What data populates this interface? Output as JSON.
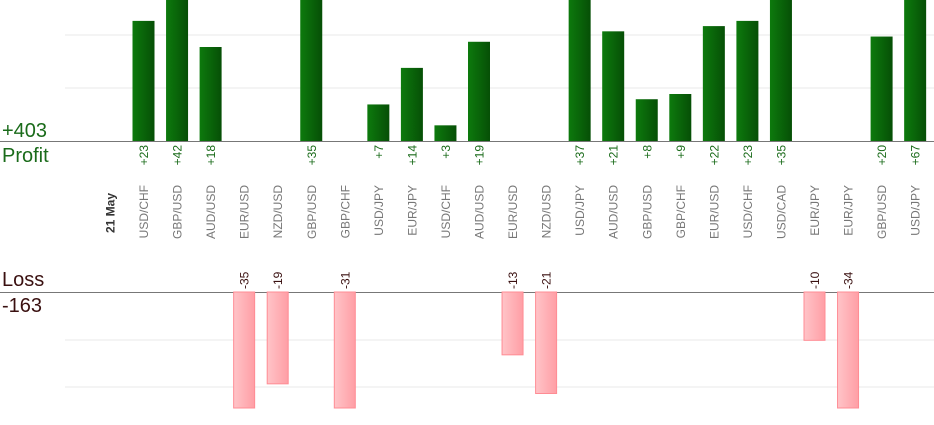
{
  "summary": {
    "profit_total": "+403",
    "profit_label": "Profit",
    "loss_label": "Loss",
    "loss_total": "-163"
  },
  "colors": {
    "profit_bar": "#0b6b0b",
    "profit_text": "#1a6b1a",
    "loss_bar": "#ffb6bb",
    "loss_text": "#3a1010",
    "pair_text": "#777777",
    "grid": "#e8e8e8",
    "baseline": "#777777"
  },
  "chart_data": {
    "type": "bar",
    "date_label": "21 May",
    "categories": [
      "USD/CHF",
      "GBP/USD",
      "AUD/USD",
      "EUR/USD",
      "NZD/USD",
      "GBP/USD",
      "GBP/CHF",
      "USD/JPY",
      "EUR/JPY",
      "USD/CHF",
      "AUD/USD",
      "EUR/USD",
      "NZD/USD",
      "USD/JPY",
      "AUD/USD",
      "GBP/USD",
      "GBP/CHF",
      "EUR/USD",
      "USD/CHF",
      "USD/CAD",
      "EUR/JPY",
      "EUR/JPY",
      "GBP/USD",
      "USD/JPY"
    ],
    "series": [
      {
        "name": "Profit",
        "values": [
          23,
          42,
          18,
          0,
          0,
          35,
          0,
          7,
          14,
          3,
          19,
          0,
          0,
          37,
          21,
          8,
          9,
          22,
          23,
          35,
          0,
          0,
          20,
          67
        ],
        "labels": [
          "+23",
          "+42",
          "+18",
          "",
          "",
          "+35",
          "",
          "+7",
          "+14",
          "+3",
          "+19",
          "",
          "",
          "+37",
          "+21",
          "+8",
          "+9",
          "+22",
          "+23",
          "+35",
          "",
          "",
          "+20",
          "+67"
        ]
      },
      {
        "name": "Loss",
        "values": [
          0,
          0,
          0,
          -35,
          -19,
          0,
          -31,
          0,
          0,
          0,
          0,
          -13,
          -21,
          0,
          0,
          0,
          0,
          0,
          0,
          0,
          -10,
          -34,
          0,
          0
        ],
        "labels": [
          "",
          "",
          "",
          "-35",
          "-19",
          "",
          "-31",
          "",
          "",
          "",
          "",
          "-13",
          "-21",
          "",
          "",
          "",
          "",
          "",
          "",
          "",
          "-10",
          "-34",
          "",
          ""
        ]
      }
    ],
    "ylim_profit": [
      0,
      27
    ],
    "ylim_loss": [
      -24,
      0
    ]
  }
}
